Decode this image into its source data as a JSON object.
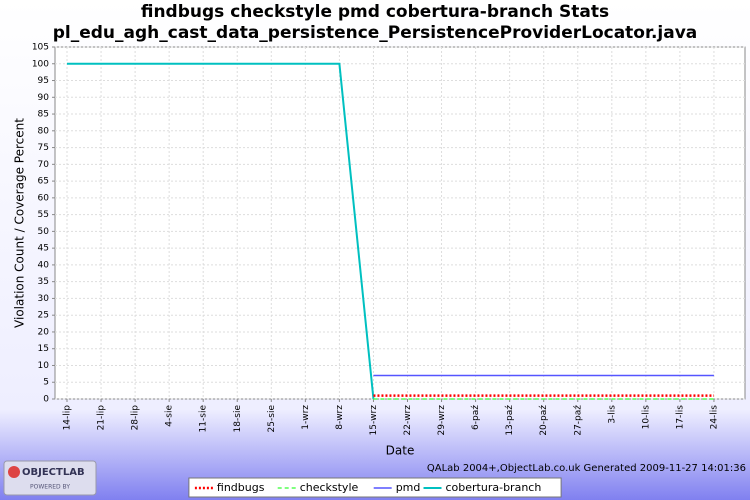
{
  "chart_data": {
    "type": "line",
    "title": "findbugs checkstyle pmd cobertura-branch  Stats",
    "subtitle": "pl_edu_agh_cast_data_persistence_PersistenceProviderLocator.java",
    "x_label": "Date",
    "y_label": "Violation Count / Coverage Percent",
    "categories": [
      "14-lip",
      "21-lip",
      "28-lip",
      "4-sie",
      "11-sie",
      "18-sie",
      "25-sie",
      "1-wrz",
      "8-wrz",
      "15-wrz",
      "22-wrz",
      "29-wrz",
      "6-paź",
      "13-paź",
      "20-paź",
      "27-paź",
      "3-lis",
      "10-lis",
      "17-lis",
      "24-lis"
    ],
    "series": [
      {
        "name": "findbugs",
        "color": "#ff0000",
        "values": [
          null,
          null,
          null,
          null,
          null,
          null,
          null,
          null,
          null,
          1,
          1,
          1,
          1,
          1,
          1,
          1,
          1,
          1,
          1,
          1
        ]
      },
      {
        "name": "checkstyle",
        "color": "#55ff55",
        "values": [
          null,
          null,
          null,
          null,
          null,
          null,
          null,
          null,
          null,
          0,
          0,
          0,
          0,
          0,
          0,
          0,
          0,
          0,
          0,
          0
        ]
      },
      {
        "name": "pmd",
        "color": "#5555ff",
        "values": [
          null,
          null,
          null,
          null,
          null,
          null,
          null,
          null,
          null,
          7,
          7,
          7,
          7,
          7,
          7,
          7,
          7,
          7,
          7,
          7
        ]
      },
      {
        "name": "cobertura-branch",
        "color": "#00c0c0",
        "values": [
          100,
          100,
          100,
          100,
          100,
          100,
          100,
          100,
          100,
          0,
          null,
          null,
          null,
          null,
          null,
          null,
          null,
          null,
          null,
          null
        ]
      }
    ],
    "ylim": [
      0,
      105
    ],
    "yticks": [
      0,
      5,
      10,
      15,
      20,
      25,
      30,
      35,
      40,
      45,
      50,
      55,
      60,
      65,
      70,
      75,
      80,
      85,
      90,
      95,
      100,
      105
    ],
    "grid": true,
    "legend": "bottom",
    "footer": "QALab 2004+,ObjectLab.co.uk Generated 2009-11-27 14:01:36",
    "logo": "OBJECTLAB",
    "logo_sub": "POWERED BY"
  }
}
